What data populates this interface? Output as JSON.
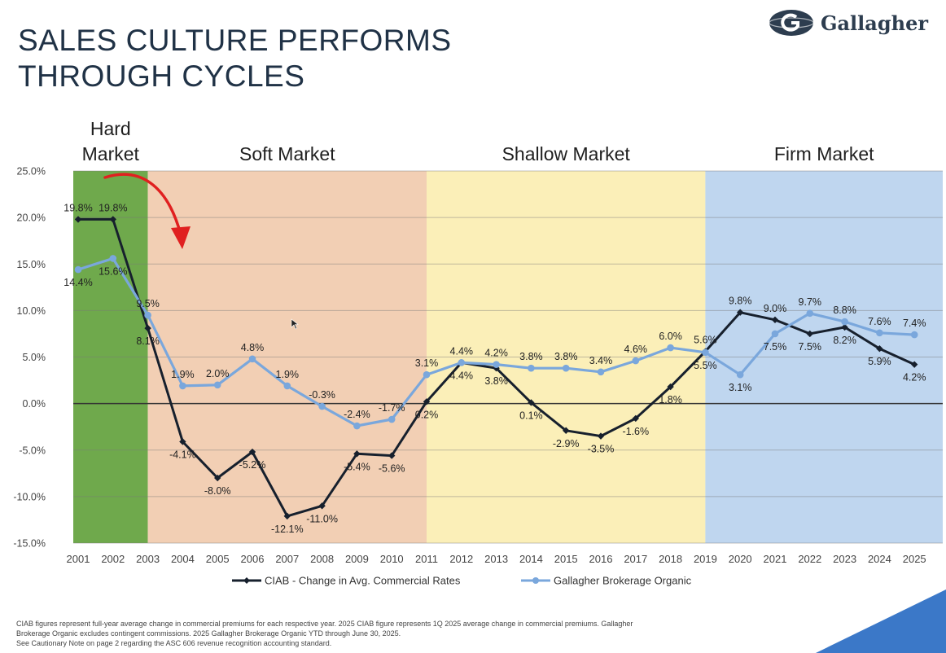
{
  "page": {
    "title_lines": [
      "SALES CULTURE PERFORMS",
      "THROUGH CYCLES"
    ],
    "brand": "Gallagher",
    "footnote_lines": [
      "CIAB figures represent full-year average change in commercial premiums for each respective year. 2025 CIAB figure represents 1Q 2025 average change in commercial premiums. Gallagher",
      "Brokerage Organic excludes contingent commissions. 2025 Gallagher Brokerage Organic YTD through June 30, 2025.",
      "See Cautionary Note on page 2 regarding the ASC 606 revenue recognition accounting standard."
    ],
    "colors": {
      "title": "#203246",
      "brand_navy": "#2d3d4f",
      "corner_blue": "#3b78c8",
      "annotation_arrow": "#e02020"
    }
  },
  "chart_data": {
    "type": "line",
    "x": [
      "2001",
      "2002",
      "2003",
      "2004",
      "2005",
      "2006",
      "2007",
      "2008",
      "2009",
      "2010",
      "2011",
      "2012",
      "2013",
      "2014",
      "2015",
      "2016",
      "2017",
      "2018",
      "2019",
      "2020",
      "2021",
      "2022",
      "2023",
      "2024",
      "2025"
    ],
    "ylim": [
      -15,
      25
    ],
    "y_ticks": [
      -15,
      -10,
      -5,
      0,
      5,
      10,
      15,
      20,
      25
    ],
    "y_tick_labels": [
      "-15.0%",
      "-10.0%",
      "-5.0%",
      "0.0%",
      "5.0%",
      "10.0%",
      "15.0%",
      "20.0%",
      "25.0%"
    ],
    "grid": "horizontal",
    "legend_position": "bottom",
    "regions": [
      {
        "label_lines": [
          "Hard",
          "Market"
        ],
        "from": "2001",
        "to": "2003",
        "color": "#6fa94c"
      },
      {
        "label_lines": [
          "Soft Market"
        ],
        "from": "2003",
        "to": "2011",
        "color": "#f2cfb4"
      },
      {
        "label_lines": [
          "Shallow Market"
        ],
        "from": "2011",
        "to": "2019",
        "color": "#fbefb8"
      },
      {
        "label_lines": [
          "Firm Market"
        ],
        "from": "2019",
        "to": "2025",
        "color": "#bfd6ef"
      }
    ],
    "series": [
      {
        "name": "CIAB - Change in Avg. Commercial Rates",
        "color": "#17202d",
        "values": [
          19.8,
          19.8,
          8.1,
          -4.1,
          -8.0,
          -5.2,
          -12.1,
          -11.0,
          -5.4,
          -5.6,
          0.2,
          4.4,
          3.8,
          0.1,
          -2.9,
          -3.5,
          -1.6,
          1.8,
          5.6,
          9.8,
          9.0,
          7.5,
          8.2,
          5.9,
          4.2
        ],
        "labels": [
          "19.8%",
          "19.8%",
          "8.1%",
          "-4.1%",
          "-8.0%",
          "-5.2%",
          "-12.1%",
          "-11.0%",
          "-5.4%",
          "-5.6%",
          "0.2%",
          "4.4%",
          "3.8%",
          "0.1%",
          "-2.9%",
          "-3.5%",
          "-1.6%",
          "1.8%",
          "5.6%",
          "9.8%",
          "9.0%",
          "7.5%",
          "8.2%",
          "5.9%",
          "4.2%"
        ]
      },
      {
        "name": "Gallagher Brokerage Organic",
        "color": "#7aa7dc",
        "values": [
          14.4,
          15.6,
          9.5,
          1.9,
          2.0,
          4.8,
          1.9,
          -0.3,
          -2.4,
          -1.7,
          3.1,
          4.4,
          4.2,
          3.8,
          3.8,
          3.4,
          4.6,
          6.0,
          5.5,
          3.1,
          7.5,
          9.7,
          8.8,
          7.6,
          7.4
        ],
        "labels": [
          "14.4%",
          "15.6%",
          "9.5%",
          "1.9%",
          "2.0%",
          "4.8%",
          "1.9%",
          "-0.3%",
          "-2.4%",
          "-1.7%",
          "3.1%",
          "4.4%",
          "4.2%",
          "3.8%",
          "3.8%",
          "3.4%",
          "4.6%",
          "6.0%",
          "5.5%",
          "3.1%",
          "7.5%",
          "9.7%",
          "8.8%",
          "7.6%",
          "7.4%"
        ]
      }
    ]
  }
}
